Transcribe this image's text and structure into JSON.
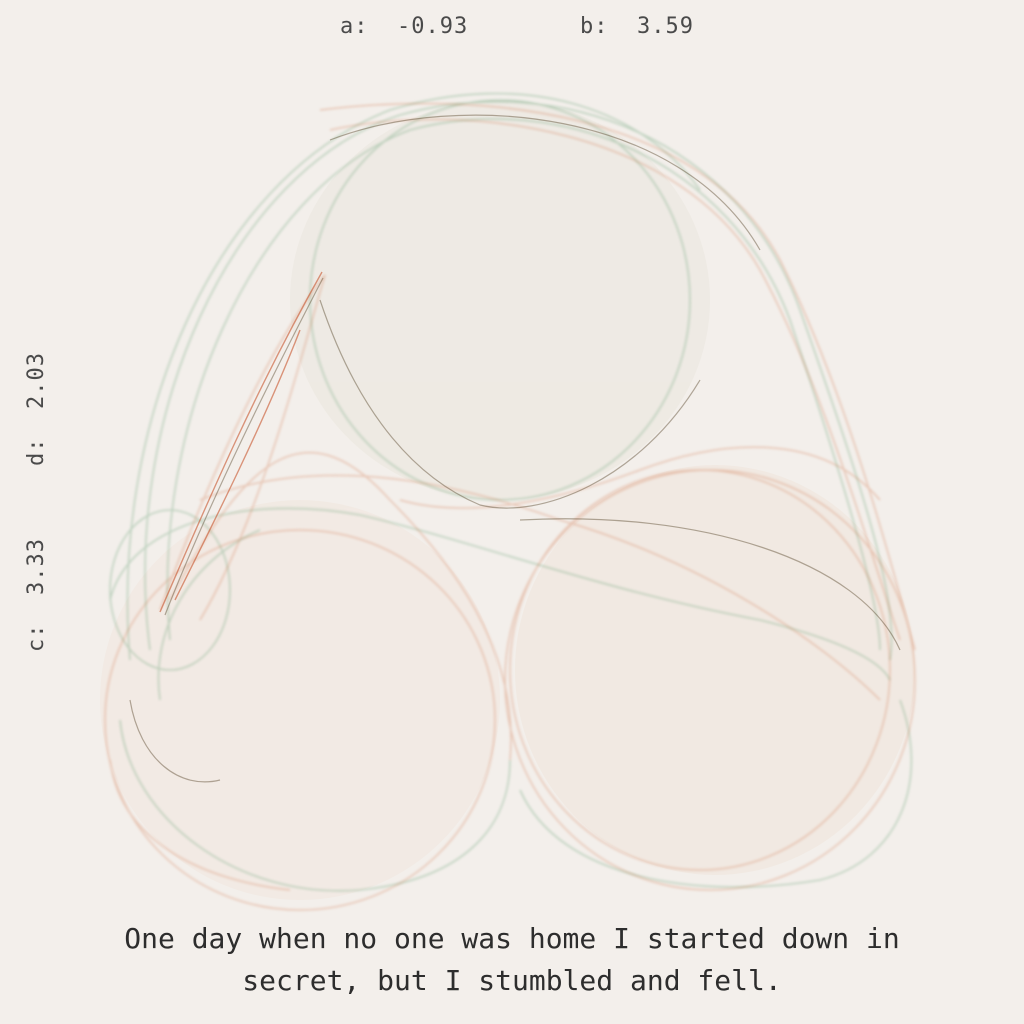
{
  "params": {
    "a_label": "a:  -0.93",
    "b_label": "b:  3.59",
    "c_label": "c:  3.33",
    "d_label": "d:  2.03"
  },
  "caption": {
    "line1": "One day when no one was home I started down in",
    "line2": "secret, but I stumbled and fell."
  },
  "colors": {
    "background": "#f3efeb",
    "green": "#5f9c6e",
    "orange": "#d0744a",
    "dark": "#5a4a2e"
  }
}
